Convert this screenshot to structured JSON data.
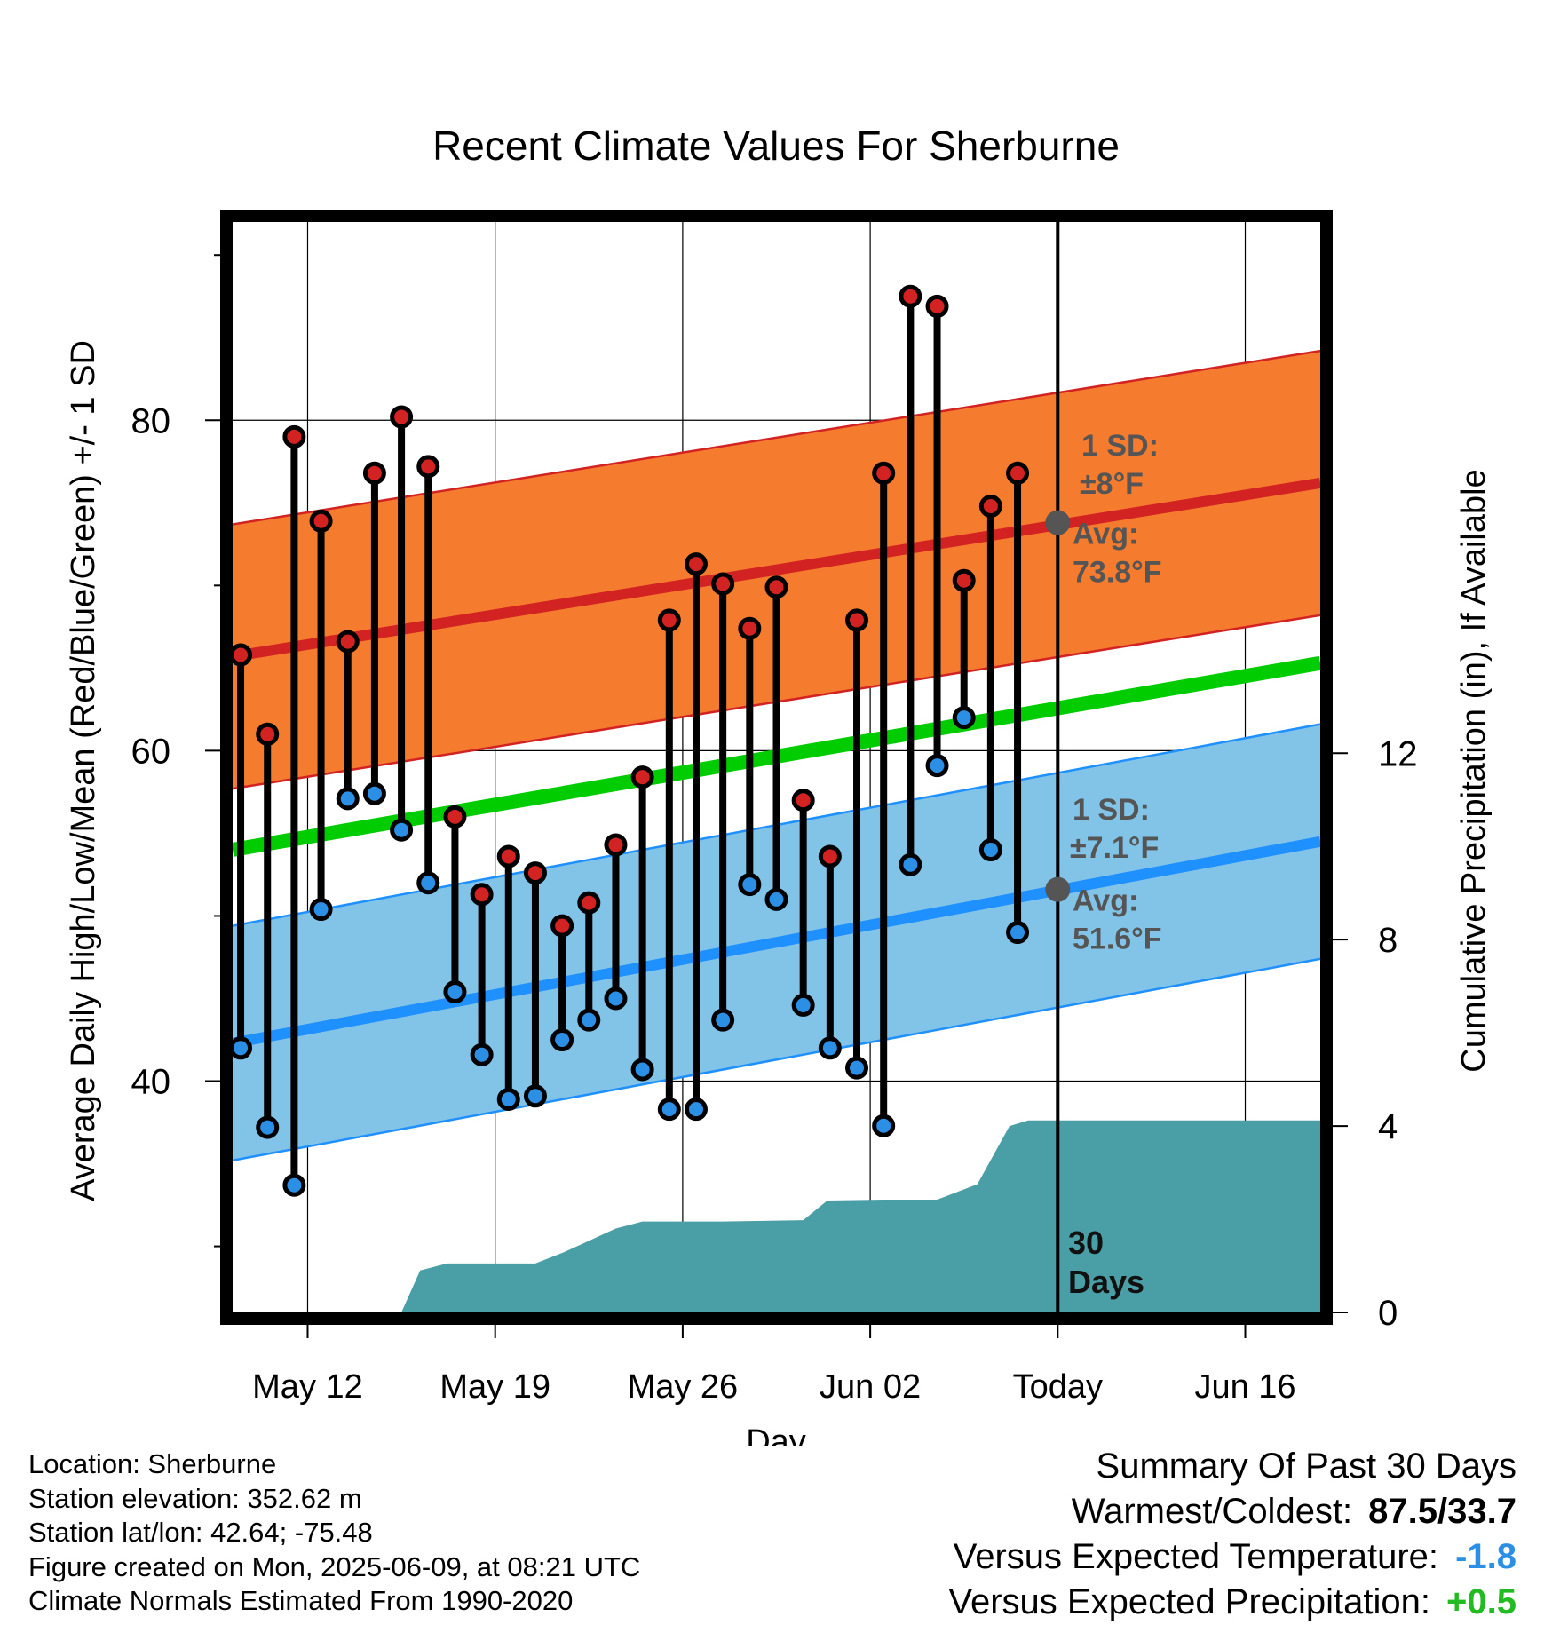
{
  "chart_data": {
    "type": "line",
    "title": "Recent Climate Values For Sherburne",
    "xlabel": "Day",
    "ylabel_left": "Average Daily High/Low/Mean (Red/Blue/Green) +/- 1 SD",
    "ylabel_right": "Cumulative Precipitation (in), If Available",
    "x_tick_labels": [
      {
        "day": 12,
        "label": "May 12"
      },
      {
        "day": 19,
        "label": "May 19"
      },
      {
        "day": 26,
        "label": "May 26"
      },
      {
        "day": 33,
        "label": "Jun 02"
      },
      {
        "day": 40,
        "label": "Today"
      },
      {
        "day": 47,
        "label": "Jun 16"
      }
    ],
    "x_day_numbering": "days counted from May 1 (May 12 = 12, Jun 02 = 33, Today = Jun 09 = 40)",
    "xlim": [
      9.2,
      49.8
    ],
    "ylim_left": [
      26,
      92
    ],
    "yticks_left": [
      40,
      60,
      80
    ],
    "ylim_right": [
      0,
      23.4
    ],
    "yticks_right": [
      0,
      4,
      8,
      12
    ],
    "today_day": 40,
    "days": [
      9.5,
      10.5,
      11.5,
      12.5,
      13.5,
      14.5,
      15.5,
      16.5,
      17.5,
      18.5,
      19.5,
      20.5,
      21.5,
      22.5,
      23.5,
      24.5,
      25.5,
      26.5,
      27.5,
      28.5,
      29.5,
      30.5,
      31.5,
      32.5,
      33.5,
      34.5,
      35.5,
      36.5,
      37.5,
      38.5
    ],
    "highs": [
      65.8,
      61.0,
      79.0,
      73.9,
      66.6,
      76.8,
      80.2,
      77.2,
      56.0,
      51.3,
      53.6,
      52.6,
      49.4,
      50.8,
      54.3,
      58.4,
      67.9,
      71.3,
      70.1,
      67.4,
      69.9,
      57.0,
      53.6,
      67.9,
      76.8,
      87.5,
      86.9,
      70.3,
      74.8,
      76.8
    ],
    "lows": [
      42.0,
      37.2,
      33.7,
      50.4,
      57.1,
      57.4,
      55.2,
      52.0,
      45.4,
      41.6,
      38.9,
      39.1,
      42.5,
      43.7,
      45.0,
      40.7,
      38.3,
      38.3,
      43.7,
      51.9,
      51.0,
      44.6,
      42.0,
      40.8,
      37.3,
      53.1,
      59.1,
      62.0,
      54.0,
      49.0
    ],
    "normal_high": {
      "start": 65.7,
      "end": 76.2,
      "sd": 8,
      "label_sd": "1 SD:",
      "label_sd_value": "±8°F",
      "label_avg": "Avg:",
      "label_avg_value": "73.8°F",
      "value_today": 73.8
    },
    "normal_low": {
      "start": 42.3,
      "end": 54.5,
      "sd": 7.1,
      "label_sd": "1 SD:",
      "label_sd_value": "±7.1°F",
      "label_avg": "Avg:",
      "label_avg_value": "51.6°F",
      "value_today": 51.6
    },
    "normal_mean": {
      "start": 54.0,
      "end": 65.3
    },
    "precip_cumulative": [
      [
        15.5,
        0
      ],
      [
        16.2,
        0.9
      ],
      [
        17.2,
        1.05
      ],
      [
        19.5,
        1.05
      ],
      [
        20.5,
        1.05
      ],
      [
        21.6,
        1.3
      ],
      [
        23.5,
        1.8
      ],
      [
        24.5,
        1.95
      ],
      [
        27.5,
        1.95
      ],
      [
        30.5,
        1.98
      ],
      [
        31.4,
        2.4
      ],
      [
        33.5,
        2.42
      ],
      [
        35.5,
        2.42
      ],
      [
        37.0,
        2.75
      ],
      [
        38.2,
        4.0
      ],
      [
        38.9,
        4.12
      ],
      [
        49.8,
        4.12
      ]
    ],
    "precip_label_line1": "30",
    "precip_label_line2": "Days",
    "colors": {
      "high_band": "#f57c2e",
      "high_line": "#d22222",
      "low_band": "#82c3e8",
      "low_line": "#1e90ff",
      "mean_line": "#00cc00",
      "precip_fill": "#4a9ea5",
      "high_marker": "#d22222",
      "low_marker": "#2c8fe6",
      "avg_marker": "#555555",
      "label_text": "#555555"
    }
  },
  "info": {
    "location": "Location: Sherburne",
    "elevation": "Station elevation: 352.62 m",
    "latlon": "Station lat/lon: 42.64; -75.48",
    "created": "Figure created on Mon, 2025-06-09, at 08:21 UTC",
    "normals": "Climate Normals Estimated From 1990-2020"
  },
  "summary": {
    "heading": "Summary Of Past 30 Days",
    "warm_cold_label": "Warmest/Coldest:",
    "warm_cold_value": "87.5/33.7",
    "temp_label": "Versus Expected Temperature:",
    "temp_value": "-1.8",
    "temp_color": "#2c8fe6",
    "precip_label": "Versus Expected Precipitation:",
    "precip_value": "+0.5",
    "precip_color": "#22bb22"
  }
}
